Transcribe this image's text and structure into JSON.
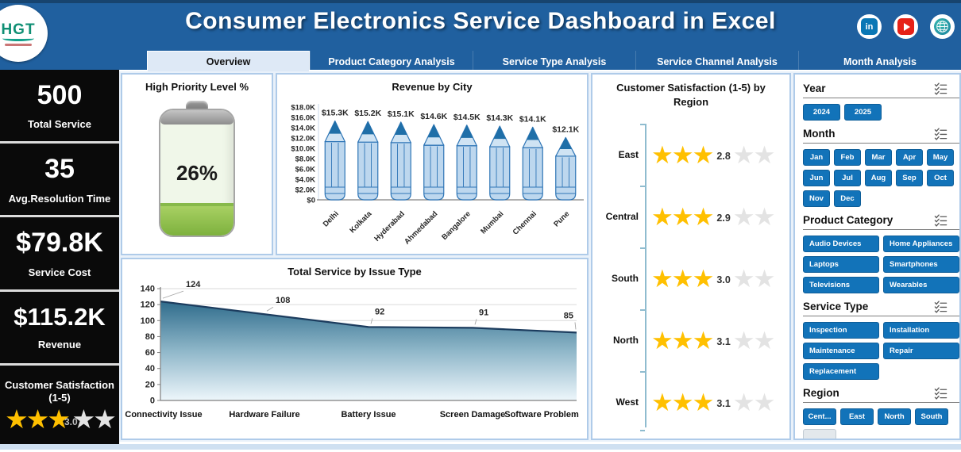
{
  "header": {
    "title": "Consumer Electronics Service Dashboard in Excel",
    "logo_text": "HGT",
    "social_icons": [
      "linkedin-icon",
      "youtube-icon",
      "globe-icon"
    ]
  },
  "tabs": [
    {
      "label": "Overview",
      "active": true
    },
    {
      "label": "Product Category Analysis",
      "active": false
    },
    {
      "label": "Service Type Analysis",
      "active": false
    },
    {
      "label": "Service Channel Analysis",
      "active": false
    },
    {
      "label": "Month Analysis",
      "active": false
    }
  ],
  "kpis": [
    {
      "value": "500",
      "label": "Total Service"
    },
    {
      "value": "35",
      "label": "Avg.Resolution Time"
    },
    {
      "value": "$79.8K",
      "label": "Service Cost"
    },
    {
      "value": "$115.2K",
      "label": "Revenue"
    },
    {
      "label": "Customer Satisfaction (1-5)",
      "rating_value": "3.0",
      "stars_filled": 3,
      "stars_total": 5
    }
  ],
  "chart_data": [
    {
      "type": "gauge",
      "title": "High Priority Level %",
      "value_pct": 26,
      "label": "26%"
    },
    {
      "type": "bar",
      "bar_style": "pencil",
      "title": "Revenue by City",
      "categories": [
        "Delhi",
        "Kolkata",
        "Hyderabad",
        "Ahmedabad",
        "Bangalore",
        "Mumbai",
        "Chennai",
        "Pune"
      ],
      "values": [
        15300,
        15200,
        15100,
        14600,
        14500,
        14300,
        14100,
        12100
      ],
      "data_labels": [
        "$15.3K",
        "$15.2K",
        "$15.1K",
        "$14.6K",
        "$14.5K",
        "$14.3K",
        "$14.1K",
        "$12.1K"
      ],
      "ylim": [
        0,
        18000
      ],
      "ytick_step": 2000,
      "ytick_labels": [
        "$0",
        "$2.0K",
        "$4.0K",
        "$6.0K",
        "$8.0K",
        "$10.0K",
        "$12.0K",
        "$14.0K",
        "$16.0K",
        "$18.0K"
      ]
    },
    {
      "type": "area",
      "title": "Total Service by Issue Type",
      "categories": [
        "Connectivity Issue",
        "Hardware Failure",
        "Battery Issue",
        "Screen Damage",
        "Software Problem"
      ],
      "values": [
        124,
        108,
        92,
        91,
        85
      ],
      "ylim": [
        0,
        140
      ],
      "ytick_step": 20,
      "grid": true
    },
    {
      "type": "rating",
      "title": "Customer Satisfaction (1-5) by Region",
      "categories": [
        "East",
        "Central",
        "South",
        "North",
        "West"
      ],
      "values": [
        2.8,
        2.9,
        3.0,
        3.1,
        3.1
      ],
      "stars_filled": 3,
      "stars_total": 5
    }
  ],
  "slicers": {
    "header_icons": [
      "multi-select-icon",
      "filter-icon"
    ],
    "sections": [
      {
        "key": "year",
        "title": "Year",
        "items": [
          "2024",
          "2025"
        ]
      },
      {
        "key": "month",
        "title": "Month",
        "items": [
          "Jan",
          "Feb",
          "Mar",
          "Apr",
          "May",
          "Jun",
          "Jul",
          "Aug",
          "Sep",
          "Oct",
          "Nov",
          "Dec"
        ]
      },
      {
        "key": "product-category",
        "title": "Product Category",
        "items": [
          "Audio Devices",
          "Home Appliances",
          "Laptops",
          "Smartphones",
          "Televisions",
          "Wearables"
        ]
      },
      {
        "key": "service-type",
        "title": "Service Type",
        "items": [
          "Inspection",
          "Installation",
          "Maintenance",
          "Repair",
          "Replacement"
        ]
      },
      {
        "key": "region",
        "title": "Region",
        "items": [
          "Cent...",
          "East",
          "North",
          "South"
        ],
        "has_partial_item": true,
        "has_scrollbar": true
      }
    ]
  },
  "colors": {
    "header_blue": "#20609F",
    "slicer_button_blue": "#1273B9",
    "gold_star": "#FFC000",
    "gray_star": "#E3E3E3",
    "panel_border": "#AFCBE9",
    "battery_green": "#7DB13E",
    "pencil_body": "#BDD7EE",
    "pencil_outline": "#2E75B6",
    "pencil_tip": "#1F6FA8",
    "area_line": "#1C3C5E"
  }
}
